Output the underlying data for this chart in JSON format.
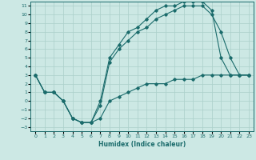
{
  "xlabel": "Humidex (Indice chaleur)",
  "xlim": [
    -0.5,
    23.5
  ],
  "ylim": [
    -3.5,
    11.5
  ],
  "xticks": [
    0,
    1,
    2,
    3,
    4,
    5,
    6,
    7,
    8,
    9,
    10,
    11,
    12,
    13,
    14,
    15,
    16,
    17,
    18,
    19,
    20,
    21,
    22,
    23
  ],
  "yticks": [
    -3,
    -2,
    -1,
    0,
    1,
    2,
    3,
    4,
    5,
    6,
    7,
    8,
    9,
    10,
    11
  ],
  "bg_color": "#cce8e4",
  "grid_color": "#aacfca",
  "line_color": "#1a6b6b",
  "line1_x": [
    0,
    1,
    2,
    3,
    4,
    5,
    6,
    7,
    8,
    9,
    10,
    11,
    12,
    13,
    14,
    15,
    16,
    17,
    18,
    19,
    20,
    21,
    22,
    23
  ],
  "line1_y": [
    3,
    1,
    1,
    0,
    -2,
    -2.5,
    -2.5,
    -2,
    0,
    0.5,
    1,
    1.5,
    2,
    2,
    2,
    2.5,
    2.5,
    2.5,
    3,
    3,
    3,
    3,
    3,
    3
  ],
  "line2_x": [
    0,
    1,
    2,
    3,
    4,
    5,
    6,
    7,
    8,
    9,
    10,
    11,
    12,
    13,
    14,
    15,
    16,
    17,
    18,
    19,
    20,
    21,
    22,
    23
  ],
  "line2_y": [
    3,
    1,
    1,
    0,
    -2,
    -2.5,
    -2.5,
    -0.5,
    4.5,
    6,
    7,
    8,
    8.5,
    9.5,
    10,
    10.5,
    11,
    11,
    11,
    10,
    8,
    5,
    3,
    3
  ],
  "line3_x": [
    0,
    1,
    2,
    3,
    4,
    5,
    6,
    7,
    8,
    9,
    10,
    11,
    12,
    13,
    14,
    15,
    16,
    17,
    18,
    19,
    20,
    21,
    22,
    23
  ],
  "line3_y": [
    3,
    1,
    1,
    0,
    -2,
    -2.5,
    -2.5,
    0,
    5,
    6.5,
    8,
    8.5,
    9.5,
    10.5,
    11,
    11,
    11.5,
    11.5,
    11.5,
    10.5,
    5,
    3,
    3,
    3
  ]
}
